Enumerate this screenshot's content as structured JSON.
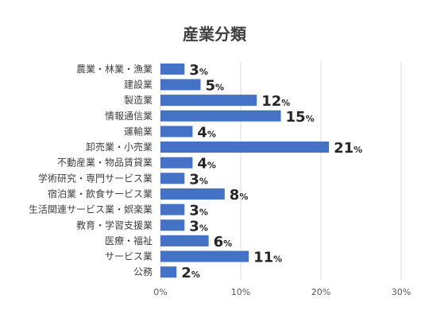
{
  "chart_data": {
    "type": "bar",
    "orientation": "horizontal",
    "title": "産業分類",
    "categories": [
      "農業・林業・漁業",
      "建設業",
      "製造業",
      "情報通信業",
      "運輸業",
      "卸売業・小売業",
      "不動産業・物品賃貸業",
      "学術研究・専門サービス業",
      "宿泊業・飲食サービス業",
      "生活関連サービス業・娯楽業",
      "教育・学習支援業",
      "医療・福祉",
      "サービス業",
      "公務"
    ],
    "values": [
      3,
      5,
      12,
      15,
      4,
      21,
      4,
      3,
      8,
      3,
      3,
      6,
      11,
      2
    ],
    "value_suffix": "%",
    "xlim": [
      0,
      30
    ],
    "xticks": [
      0,
      10,
      20,
      30
    ],
    "xtick_labels": [
      "0%",
      "10%",
      "20%",
      "30%"
    ],
    "grid": true,
    "bar_color": "#4472c4",
    "xlabel": "",
    "ylabel": ""
  }
}
